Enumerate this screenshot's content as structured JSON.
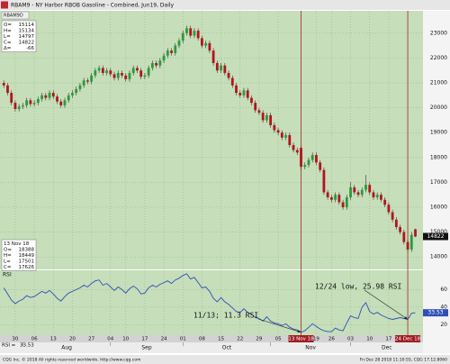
{
  "window": {
    "title": "RBAM9 - NY Harbor RBOB Gasoline - Combined, Jun19, Daily",
    "button": "RBAM9D"
  },
  "footer": {
    "left": "CQG Inc. © 2018 All rights reserved worldwide. http://www.cqg.com",
    "right": "Fri Dec 28 2018 11:10:55, CQG 17.12.8060"
  },
  "chart_data": [
    {
      "type": "candlestick",
      "open": [
        21000,
        20900,
        20600,
        20200,
        19950,
        20050,
        20100,
        20300,
        20150,
        20200,
        20350,
        20500,
        20400,
        20600,
        20450,
        20250,
        20100,
        20300,
        20500,
        20600,
        20750,
        20900,
        21100,
        21050,
        21300,
        21500,
        21600,
        21400,
        21500,
        21350,
        21200,
        21400,
        21300,
        21150,
        21400,
        21600,
        21500,
        21250,
        21300,
        21600,
        21800,
        21700,
        21900,
        22100,
        22300,
        22200,
        22500,
        22700,
        23000,
        23200,
        22900,
        23100,
        22800,
        22500,
        22600,
        22300,
        21800,
        21500,
        21700,
        21400,
        21200,
        20900,
        20600,
        20500,
        20700,
        20400,
        20200,
        19900,
        19800,
        19500,
        19700,
        19300,
        19100,
        19000,
        18800,
        18900,
        18500,
        18300,
        18388,
        17626,
        17700,
        17900,
        18100,
        17800,
        17500,
        16600,
        16400,
        16300,
        16500,
        16200,
        16000,
        16400,
        16800,
        16600,
        16500,
        16700,
        16900,
        16600,
        16400,
        16500,
        16300,
        16100,
        15800,
        15500,
        15200,
        15000,
        14600,
        14300,
        15114
      ],
      "high": [
        21100,
        21000,
        20700,
        20300,
        20150,
        20200,
        20400,
        20400,
        20300,
        20450,
        20600,
        20600,
        20700,
        20700,
        20550,
        20350,
        20400,
        20600,
        20700,
        20850,
        21000,
        21200,
        21200,
        21400,
        21600,
        21700,
        21700,
        21600,
        21600,
        21450,
        21500,
        21500,
        21400,
        21500,
        21700,
        21700,
        21600,
        21400,
        21700,
        21900,
        21900,
        22000,
        22200,
        22400,
        22400,
        22600,
        22800,
        23100,
        23300,
        23300,
        23200,
        23200,
        22900,
        22700,
        22700,
        22400,
        21900,
        21800,
        21800,
        21500,
        21300,
        21000,
        20700,
        20800,
        20800,
        20500,
        20300,
        20000,
        19900,
        19800,
        19800,
        19400,
        19200,
        19100,
        19000,
        19000,
        18600,
        18400,
        18449,
        17800,
        18000,
        18200,
        18200,
        17900,
        17600,
        16700,
        16500,
        16600,
        16600,
        16300,
        16500,
        17000,
        16900,
        16700,
        16800,
        17300,
        17000,
        16700,
        16600,
        16600,
        16400,
        16200,
        15900,
        15600,
        15300,
        15100,
        14700,
        15000,
        15134
      ],
      "low": [
        20800,
        20500,
        20100,
        19850,
        19850,
        19950,
        20000,
        20050,
        20050,
        20100,
        20250,
        20300,
        20300,
        20350,
        20150,
        20000,
        20000,
        20200,
        20400,
        20500,
        20650,
        20800,
        20950,
        20950,
        21200,
        21400,
        21300,
        21300,
        21250,
        21100,
        21100,
        21200,
        21050,
        21050,
        21300,
        21400,
        21150,
        21150,
        21200,
        21500,
        21600,
        21600,
        21800,
        22000,
        22100,
        22100,
        22400,
        22600,
        22900,
        22800,
        22800,
        22700,
        22400,
        22400,
        22200,
        21700,
        21400,
        21400,
        21300,
        21100,
        20800,
        20500,
        20400,
        20400,
        20300,
        20100,
        19800,
        19700,
        19400,
        19400,
        19200,
        19000,
        18900,
        18700,
        18700,
        18400,
        18200,
        18100,
        17501,
        17526,
        17600,
        17800,
        17700,
        17400,
        16500,
        16300,
        16200,
        16200,
        16100,
        15900,
        15900,
        16300,
        16500,
        16400,
        16400,
        16600,
        16500,
        16300,
        16300,
        16200,
        16000,
        15700,
        15400,
        15100,
        14900,
        14500,
        14200,
        14200,
        14797
      ],
      "close": [
        20900,
        20600,
        20200,
        19950,
        20050,
        20100,
        20300,
        20150,
        20200,
        20350,
        20500,
        20400,
        20600,
        20450,
        20250,
        20100,
        20300,
        20500,
        20600,
        20750,
        20900,
        21100,
        21050,
        21300,
        21500,
        21600,
        21400,
        21500,
        21350,
        21200,
        21400,
        21300,
        21150,
        21400,
        21600,
        21500,
        21250,
        21300,
        21600,
        21800,
        21700,
        21900,
        22100,
        22300,
        22200,
        22500,
        22700,
        23000,
        23200,
        22900,
        23100,
        22800,
        22500,
        22600,
        22300,
        21800,
        21500,
        21700,
        21400,
        21200,
        20900,
        20600,
        20500,
        20700,
        20400,
        20200,
        19900,
        19800,
        19500,
        19700,
        19300,
        19100,
        19000,
        18800,
        18900,
        18500,
        18300,
        18200,
        17626,
        17700,
        17900,
        18100,
        17800,
        17500,
        16600,
        16400,
        16300,
        16500,
        16200,
        16000,
        16400,
        16800,
        16600,
        16500,
        16700,
        16900,
        16600,
        16400,
        16500,
        16300,
        16100,
        15800,
        15500,
        15200,
        15000,
        14600,
        14300,
        14888,
        14822
      ],
      "up_color": "#2c9a3c",
      "down_color": "#b3141c",
      "ylim": [
        13500,
        23900
      ],
      "yticks": [
        14000,
        15000,
        16000,
        17000,
        18000,
        19000,
        20000,
        21000,
        22000,
        23000
      ],
      "xlim": [
        -1,
        110
      ],
      "xticks": [
        {
          "value": 3,
          "label": "30"
        },
        {
          "value": 8,
          "label": "06"
        },
        {
          "value": 13,
          "label": "13"
        },
        {
          "value": 18,
          "label": "20"
        },
        {
          "value": 23,
          "label": "27"
        },
        {
          "value": 28,
          "label": "04"
        },
        {
          "value": 32,
          "label": "10"
        },
        {
          "value": 37,
          "label": "17"
        },
        {
          "value": 42,
          "label": "24"
        },
        {
          "value": 47,
          "label": "01"
        },
        {
          "value": 52,
          "label": "08"
        },
        {
          "value": 57,
          "label": "15"
        },
        {
          "value": 62,
          "label": "22"
        },
        {
          "value": 67,
          "label": "29"
        },
        {
          "value": 72,
          "label": "05"
        },
        {
          "value": 82,
          "label": "19"
        },
        {
          "value": 86,
          "label": "26"
        },
        {
          "value": 91,
          "label": "03"
        },
        {
          "value": 96,
          "label": "10"
        },
        {
          "value": 101,
          "label": "17"
        }
      ],
      "months": [
        {
          "value": 5,
          "label": "Aug"
        },
        {
          "value": 28,
          "label": "Sep"
        },
        {
          "value": 47,
          "label": "Oct"
        },
        {
          "value": 70,
          "label": "Nov"
        },
        {
          "value": 91,
          "label": "Dec"
        }
      ],
      "markers": [
        {
          "x": 78,
          "label": "13 Nov 18"
        },
        {
          "x": 106,
          "label": "24 Dec 18"
        }
      ],
      "info_labels": [
        "O=",
        "H=",
        "L=",
        "C=",
        "Δ="
      ],
      "change": -66,
      "grid": true
    },
    {
      "type": "line",
      "title": "RSI",
      "value_prefix": "RSI =",
      "color": "#2f4fb5",
      "values": [
        62,
        55,
        48,
        44,
        47,
        49,
        53,
        51,
        52,
        55,
        58,
        56,
        59,
        55,
        50,
        47,
        52,
        56,
        58,
        60,
        62,
        65,
        63,
        67,
        70,
        71,
        65,
        67,
        63,
        59,
        63,
        60,
        56,
        61,
        64,
        61,
        55,
        56,
        62,
        65,
        63,
        66,
        68,
        70,
        67,
        71,
        73,
        76,
        78,
        72,
        74,
        68,
        62,
        63,
        58,
        50,
        46,
        51,
        46,
        43,
        39,
        35,
        34,
        38,
        34,
        32,
        28,
        27,
        24,
        29,
        24,
        22,
        21,
        19,
        21,
        17,
        15,
        14,
        11.3,
        13,
        17,
        21,
        18,
        15,
        13,
        12,
        12,
        16,
        14,
        13,
        22,
        30,
        28,
        27,
        40,
        45,
        35,
        32,
        34,
        31,
        29,
        27,
        26,
        27,
        28,
        27,
        25.98,
        33,
        33.53
      ],
      "ylim": [
        8,
        82
      ],
      "yticks": [
        20,
        40,
        60
      ],
      "annotations": [
        {
          "text": "12/24 low, 25.98 RSI",
          "x": 106,
          "y": 25.98
        },
        {
          "text": "11/13; 11.3 RSI",
          "x": 78,
          "y": 11.3
        }
      ]
    }
  ]
}
